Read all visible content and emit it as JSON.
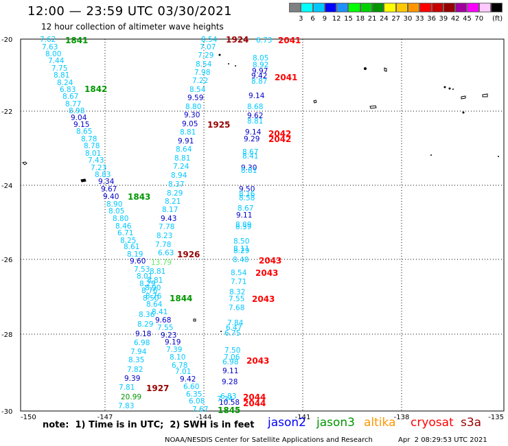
{
  "header": {
    "title": "12:00 — 23:59 UTC 03/30/2021",
    "subtitle": "12 hour collection of altimeter wave heights"
  },
  "colorbar": {
    "colors": [
      "#808080",
      "#00ffff",
      "#00c8ff",
      "#0000ff",
      "#1e90ff",
      "#00ff00",
      "#00d200",
      "#009600",
      "#ffff00",
      "#ffc800",
      "#ff9600",
      "#ff0000",
      "#c80000",
      "#960000",
      "#a000a0",
      "#ff00ff",
      "#ffc8ff",
      "#000000"
    ],
    "labels": [
      "3",
      "6",
      "9",
      "12",
      "15",
      "18",
      "21",
      "24",
      "27",
      "30",
      "33",
      "36",
      "39",
      "42",
      "45",
      "70"
    ],
    "unit": "(ft)"
  },
  "axes": {
    "lon_labels": [
      "-150",
      "-147",
      "-144",
      "-141",
      "-138",
      "-135"
    ],
    "lat_labels": [
      "-20",
      "-22",
      "-24",
      "-26",
      "-28",
      "-30"
    ]
  },
  "passes": [
    {
      "label": "1841",
      "color": "#009600"
    },
    {
      "label": "1842",
      "color": "#009600"
    },
    {
      "label": "1843",
      "color": "#009600"
    },
    {
      "label": "1844",
      "color": "#009600"
    },
    {
      "label": "1845",
      "color": "#009600"
    },
    {
      "label": "1924",
      "color": "#960000"
    },
    {
      "label": "1925",
      "color": "#960000"
    },
    {
      "label": "1926",
      "color": "#960000"
    },
    {
      "label": "1927",
      "color": "#960000"
    },
    {
      "label": "2041",
      "color": "#ff0000"
    },
    {
      "label": "2041",
      "color": "#ff0000"
    },
    {
      "label": "2042",
      "color": "#ff0000"
    },
    {
      "label": "2042",
      "color": "#ff0000"
    },
    {
      "label": "2043",
      "color": "#ff0000"
    },
    {
      "label": "2043",
      "color": "#ff0000"
    },
    {
      "label": "2043",
      "color": "#ff0000"
    },
    {
      "label": "2043",
      "color": "#ff0000"
    },
    {
      "label": "2044",
      "color": "#ff0000"
    },
    {
      "label": "2044",
      "color": "#ff0000"
    }
  ],
  "observations": [
    {
      "v": "7.62",
      "c": "#00c8ff"
    },
    {
      "v": "7.63",
      "c": "#00c8ff"
    },
    {
      "v": "8.00",
      "c": "#00c8ff"
    },
    {
      "v": "7.44",
      "c": "#00c8ff"
    },
    {
      "v": "7.75",
      "c": "#00c8ff"
    },
    {
      "v": "8.81",
      "c": "#00c8ff"
    },
    {
      "v": "8.24",
      "c": "#00c8ff"
    },
    {
      "v": "6.83",
      "c": "#00c8ff"
    },
    {
      "v": "8.67",
      "c": "#00c8ff"
    },
    {
      "v": "8.77",
      "c": "#00c8ff"
    },
    {
      "v": "8.98",
      "c": "#00c8ff"
    },
    {
      "v": "9.04",
      "c": "#0000c8"
    },
    {
      "v": "9.15",
      "c": "#0000c8"
    },
    {
      "v": "8.65",
      "c": "#00c8ff"
    },
    {
      "v": "8.78",
      "c": "#00c8ff"
    },
    {
      "v": "8.78",
      "c": "#00c8ff"
    },
    {
      "v": "8.01",
      "c": "#00c8ff"
    },
    {
      "v": "7.43",
      "c": "#00c8ff"
    },
    {
      "v": "7.23",
      "c": "#00c8ff"
    },
    {
      "v": "8.83",
      "c": "#00c8ff"
    },
    {
      "v": "9.34",
      "c": "#0000c8"
    },
    {
      "v": "9.67",
      "c": "#0000c8"
    },
    {
      "v": "9.40",
      "c": "#0000c8"
    },
    {
      "v": "8.90",
      "c": "#00c8ff"
    },
    {
      "v": "8.05",
      "c": "#00c8ff"
    },
    {
      "v": "8.80",
      "c": "#00c8ff"
    },
    {
      "v": "8.46",
      "c": "#00c8ff"
    },
    {
      "v": "6.71",
      "c": "#00c8ff"
    },
    {
      "v": "8.25",
      "c": "#00c8ff"
    },
    {
      "v": "8.61",
      "c": "#00c8ff"
    },
    {
      "v": "8.19",
      "c": "#00c8ff"
    },
    {
      "v": "9.60",
      "c": "#0000c8"
    },
    {
      "v": "7.53",
      "c": "#00c8ff"
    },
    {
      "v": "8.01",
      "c": "#00c8ff"
    },
    {
      "v": "8.29",
      "c": "#00c8ff"
    },
    {
      "v": "8.76",
      "c": "#00c8ff"
    },
    {
      "v": "8.50",
      "c": "#00c8ff"
    },
    {
      "v": "8.36",
      "c": "#00c8ff"
    },
    {
      "v": "8.29",
      "c": "#00c8ff"
    },
    {
      "v": "9.18",
      "c": "#0000c8"
    },
    {
      "v": "6.98",
      "c": "#00c8ff"
    },
    {
      "v": "7.94",
      "c": "#00c8ff"
    },
    {
      "v": "8.35",
      "c": "#00c8ff"
    },
    {
      "v": "7.82",
      "c": "#00c8ff"
    },
    {
      "v": "9.39",
      "c": "#0000c8"
    },
    {
      "v": "7.81",
      "c": "#00c8ff"
    },
    {
      "v": "20.99",
      "c": "#009600"
    },
    {
      "v": "7.83",
      "c": "#00c8ff"
    },
    {
      "v": "8.54",
      "c": "#00c8ff"
    },
    {
      "v": "7.07",
      "c": "#00c8ff"
    },
    {
      "v": "7.29",
      "c": "#00c8ff"
    },
    {
      "v": "8.54",
      "c": "#00c8ff"
    },
    {
      "v": "7.98",
      "c": "#00c8ff"
    },
    {
      "v": "7.22",
      "c": "#00c8ff"
    },
    {
      "v": "8.54",
      "c": "#00c8ff"
    },
    {
      "v": "9.59",
      "c": "#0000c8"
    },
    {
      "v": "8.80",
      "c": "#00c8ff"
    },
    {
      "v": "9.30",
      "c": "#0000c8"
    },
    {
      "v": "9.05",
      "c": "#0000c8"
    },
    {
      "v": "8.81",
      "c": "#00c8ff"
    },
    {
      "v": "9.91",
      "c": "#0000c8"
    },
    {
      "v": "8.64",
      "c": "#00c8ff"
    },
    {
      "v": "8.81",
      "c": "#00c8ff"
    },
    {
      "v": "7.24",
      "c": "#00c8ff"
    },
    {
      "v": "8.94",
      "c": "#00c8ff"
    },
    {
      "v": "8.37",
      "c": "#00c8ff"
    },
    {
      "v": "8.29",
      "c": "#00c8ff"
    },
    {
      "v": "8.21",
      "c": "#00c8ff"
    },
    {
      "v": "8.17",
      "c": "#00c8ff"
    },
    {
      "v": "9.43",
      "c": "#0000c8"
    },
    {
      "v": "7.78",
      "c": "#00c8ff"
    },
    {
      "v": "8.23",
      "c": "#00c8ff"
    },
    {
      "v": "7.78",
      "c": "#00c8ff"
    },
    {
      "v": "6.63",
      "c": "#00c8ff"
    },
    {
      "v": "13.79",
      "c": "#64e664"
    },
    {
      "v": "8.81",
      "c": "#00c8ff"
    },
    {
      "v": "8.81",
      "c": "#00c8ff"
    },
    {
      "v": "8.90",
      "c": "#00c8ff"
    },
    {
      "v": "8.76",
      "c": "#00c8ff"
    },
    {
      "v": "8.64",
      "c": "#00c8ff"
    },
    {
      "v": "8.41",
      "c": "#00c8ff"
    },
    {
      "v": "9.68",
      "c": "#0000c8"
    },
    {
      "v": "7.55",
      "c": "#00c8ff"
    },
    {
      "v": "9.23",
      "c": "#0000c8"
    },
    {
      "v": "9.19",
      "c": "#0000c8"
    },
    {
      "v": "7.39",
      "c": "#00c8ff"
    },
    {
      "v": "8.10",
      "c": "#00c8ff"
    },
    {
      "v": "6.78",
      "c": "#00c8ff"
    },
    {
      "v": "7.01",
      "c": "#00c8ff"
    },
    {
      "v": "9.42",
      "c": "#0000c8"
    },
    {
      "v": "6.60",
      "c": "#00c8ff"
    },
    {
      "v": "6.35",
      "c": "#00c8ff"
    },
    {
      "v": "6.08",
      "c": "#00c8ff"
    },
    {
      "v": "7.67",
      "c": "#00c8ff"
    },
    {
      "v": "6.73",
      "c": "#00c8ff"
    },
    {
      "v": "8.05",
      "c": "#00c8ff"
    },
    {
      "v": "8.92",
      "c": "#00c8ff"
    },
    {
      "v": "9.97",
      "c": "#0000c8"
    },
    {
      "v": "9.42",
      "c": "#0000c8"
    },
    {
      "v": "8.87",
      "c": "#00c8ff"
    },
    {
      "v": "9.14",
      "c": "#0000c8"
    },
    {
      "v": "8.68",
      "c": "#00c8ff"
    },
    {
      "v": "9.62",
      "c": "#0000c8"
    },
    {
      "v": "8.81",
      "c": "#00c8ff"
    },
    {
      "v": "9.14",
      "c": "#0000c8"
    },
    {
      "v": "9.29",
      "c": "#0000c8"
    },
    {
      "v": "8.67",
      "c": "#00c8ff"
    },
    {
      "v": "8.41",
      "c": "#00c8ff"
    },
    {
      "v": "9.30",
      "c": "#0000c8"
    },
    {
      "v": "8.81",
      "c": "#00c8ff"
    },
    {
      "v": "9.50",
      "c": "#0000c8"
    },
    {
      "v": "8.16",
      "c": "#00c8ff"
    },
    {
      "v": "8.58",
      "c": "#00c8ff"
    },
    {
      "v": "8.67",
      "c": "#00c8ff"
    },
    {
      "v": "9.11",
      "c": "#0000c8"
    },
    {
      "v": "8.89",
      "c": "#00c8ff"
    },
    {
      "v": "8.39",
      "c": "#00c8ff"
    },
    {
      "v": "8.50",
      "c": "#00c8ff"
    },
    {
      "v": "8.11",
      "c": "#00c8ff"
    },
    {
      "v": "8.29",
      "c": "#00c8ff"
    },
    {
      "v": "8.48",
      "c": "#00c8ff"
    },
    {
      "v": "8.54",
      "c": "#00c8ff"
    },
    {
      "v": "7.71",
      "c": "#00c8ff"
    },
    {
      "v": "8.32",
      "c": "#00c8ff"
    },
    {
      "v": "7.55",
      "c": "#00c8ff"
    },
    {
      "v": "7.68",
      "c": "#00c8ff"
    },
    {
      "v": "7.84",
      "c": "#00c8ff"
    },
    {
      "v": "6.47",
      "c": "#00c8ff"
    },
    {
      "v": "6.75",
      "c": "#00c8ff"
    },
    {
      "v": "7.50",
      "c": "#00c8ff"
    },
    {
      "v": "7.06",
      "c": "#00c8ff"
    },
    {
      "v": "6.98",
      "c": "#00c8ff"
    },
    {
      "v": "9.11",
      "c": "#0000c8"
    },
    {
      "v": "9.28",
      "c": "#0000c8"
    },
    {
      "v": "6.83",
      "c": "#00c8ff"
    },
    {
      "v": "7.34",
      "c": "#00c8ff"
    },
    {
      "v": "10.58",
      "c": "#0000c8"
    },
    {
      "v": "7.02",
      "c": "#00c8ff"
    }
  ],
  "footer": {
    "note": "note:  1) Time is in UTC;  2) SWH is in feet",
    "satellites": [
      {
        "name": "jason2",
        "color": "#0000ff"
      },
      {
        "name": "jason3",
        "color": "#009600"
      },
      {
        "name": "altika",
        "color": "#ff9600"
      },
      {
        "name": "cryosat",
        "color": "#ff0000"
      },
      {
        "name": "s3a",
        "color": "#960000"
      }
    ],
    "credit": "NOAA/NESDIS Center for Satellite Applications and Research",
    "timestamp": "Apr  2 08:29:53 UTC 2021"
  }
}
